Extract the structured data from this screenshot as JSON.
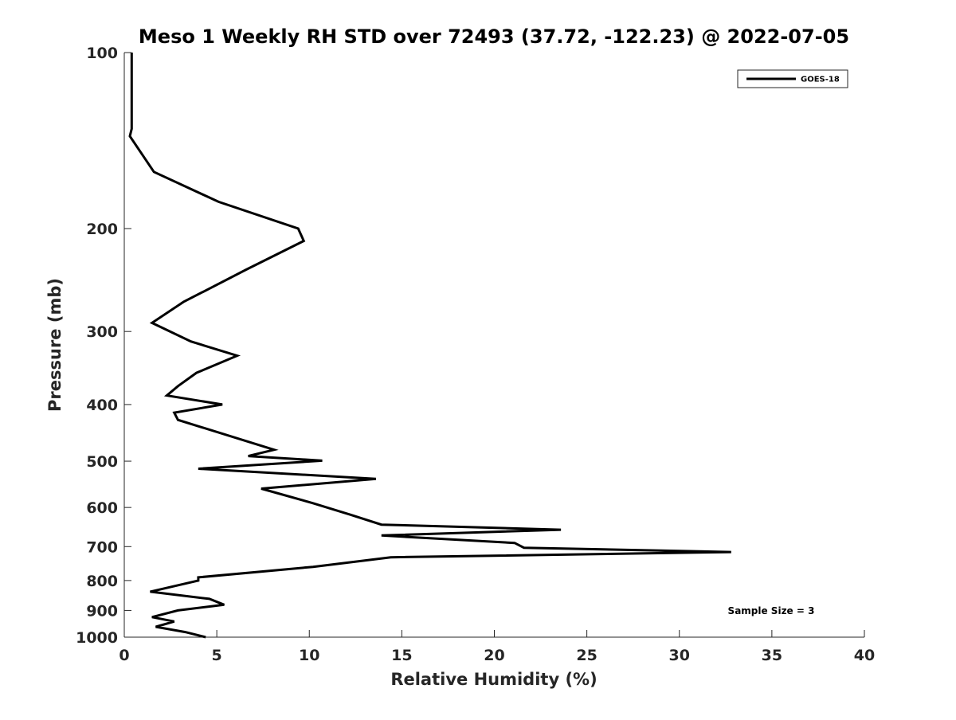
{
  "chart_data": {
    "type": "line",
    "title": "Meso 1 Weekly RH STD over 72493 (37.72, -122.23) @ 2022-07-05",
    "xlabel": "Relative Humidity (%)",
    "ylabel": "Pressure (mb)",
    "xlim": [
      0,
      40
    ],
    "ylim": [
      1000,
      100
    ],
    "yscale": "log",
    "y_reversed": true,
    "grid": false,
    "legend_position": "top-right",
    "x_ticks": [
      0,
      5,
      10,
      15,
      20,
      25,
      30,
      35,
      40
    ],
    "y_ticks": [
      100,
      200,
      300,
      400,
      500,
      600,
      700,
      800,
      900,
      1000
    ],
    "series": [
      {
        "name": "GOES-18",
        "color": "#000000",
        "x": [
          0.4,
          0.4,
          0.4,
          0.3,
          1.6,
          5.1,
          9.4,
          9.7,
          6.6,
          3.2,
          1.5,
          3.6,
          6.1,
          3.9,
          2.9,
          2.3,
          5.3,
          2.7,
          2.9,
          8.1,
          6.7,
          10.7,
          4.0,
          13.6,
          7.4,
          10.2,
          12.2,
          13.9,
          23.6,
          13.9,
          21.1,
          21.6,
          32.8,
          14.4,
          10.2,
          4.0,
          4.0,
          1.4,
          4.6,
          5.4,
          2.9,
          1.5,
          2.7,
          1.7,
          3.3,
          4.4
        ],
        "y": [
          100,
          120,
          135,
          139,
          160,
          180,
          200,
          210,
          235,
          267,
          290,
          312,
          330,
          353,
          372,
          386,
          400,
          413,
          425,
          478,
          490,
          499,
          515,
          536,
          557,
          590,
          617,
          642,
          655,
          670,
          690,
          703,
          715,
          730,
          758,
          790,
          800,
          836,
          860,
          880,
          900,
          924,
          940,
          960,
          980,
          1000
        ]
      }
    ],
    "annotations": [
      "Sample Size = 3"
    ]
  },
  "colors": {
    "line": "#000000",
    "axes": "#262626",
    "background": "#ffffff"
  }
}
